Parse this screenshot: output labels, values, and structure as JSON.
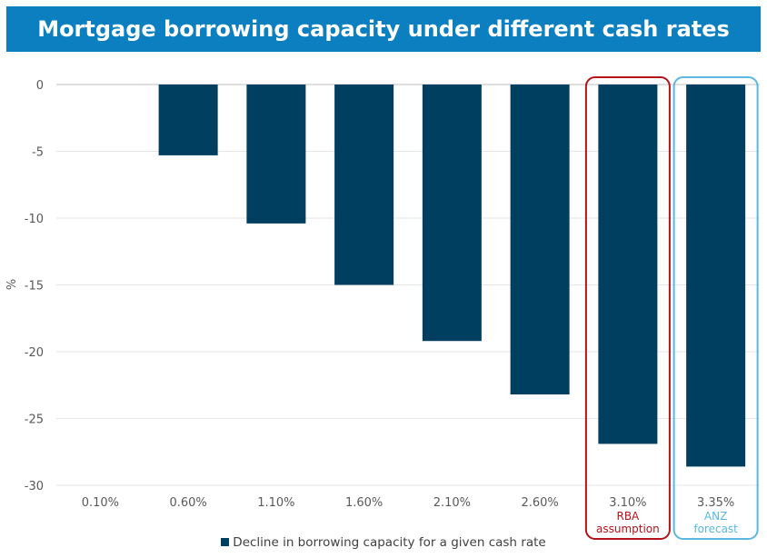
{
  "chart_data": {
    "type": "bar",
    "title": "Mortgage borrowing capacity under different cash rates",
    "ylabel": "%",
    "ylim": [
      -30,
      0
    ],
    "yticks": [
      0,
      -5,
      -10,
      -15,
      -20,
      -25,
      -30
    ],
    "grid": true,
    "categories": [
      "0.10%",
      "0.60%",
      "1.10%",
      "1.60%",
      "2.10%",
      "2.60%",
      "3.10%",
      "3.35%"
    ],
    "series": [
      {
        "name": "Decline in borrowing capacity for a given cash rate",
        "values": [
          0,
          -5.3,
          -10.4,
          -15.0,
          -19.2,
          -23.2,
          -26.9,
          -28.6
        ],
        "color": "#003f5f"
      }
    ],
    "highlights": [
      {
        "category": "3.10%",
        "text": [
          "RBA",
          "assumption"
        ],
        "color": "#b3121b"
      },
      {
        "category": "3.35%",
        "text": [
          "ANZ",
          "forecast"
        ],
        "color": "#5ab8e0"
      }
    ],
    "legend_position": "bottom"
  }
}
